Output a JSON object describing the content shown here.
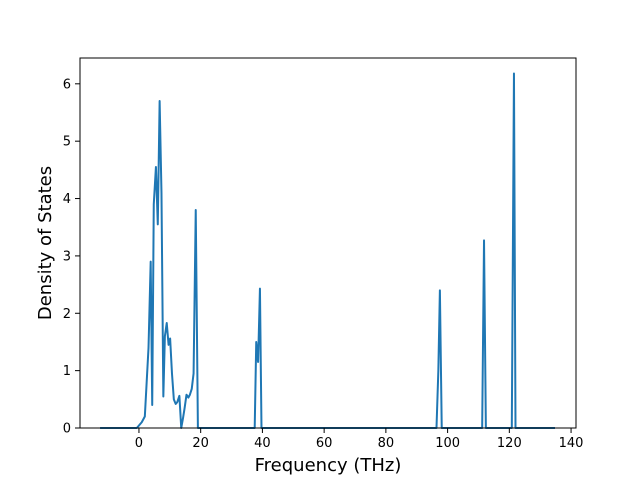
{
  "chart_data": {
    "type": "line",
    "xlabel": "Frequency (THz)",
    "ylabel": "Density of States",
    "xlim": [
      -19.1,
      141.6
    ],
    "ylim": [
      0,
      6.45
    ],
    "xticks": [
      0,
      20,
      40,
      60,
      80,
      100,
      120,
      140
    ],
    "yticks": [
      0,
      1,
      2,
      3,
      4,
      5,
      6
    ],
    "xtick_labels": [
      "0",
      "20",
      "40",
      "60",
      "80",
      "100",
      "120",
      "140"
    ],
    "ytick_labels": [
      "0",
      "1",
      "2",
      "3",
      "4",
      "5",
      "6"
    ],
    "grid": false,
    "line_color": "#1f77b4",
    "series": [
      {
        "x": [
          -12.6,
          -0.7,
          0.9,
          1.9,
          3.1,
          3.8,
          4.3,
          4.8,
          5.5,
          6.1,
          6.7,
          7.3,
          7.9,
          8.4,
          9.0,
          9.6,
          10.1,
          10.7,
          11.3,
          11.9,
          12.4,
          13.1,
          13.7,
          14.3,
          14.8,
          15.4,
          16.0,
          16.5,
          17.1,
          17.7,
          18.4,
          19.1,
          19.7,
          20.3,
          20.9,
          21.6,
          22.1,
          22.6,
          37.5,
          38.0,
          38.6,
          39.2,
          39.7,
          40.4,
          96.4,
          97.0,
          97.5,
          98.1,
          111.2,
          111.8,
          112.4,
          113.1,
          120.8,
          121.5,
          122.0,
          122.6,
          134.8
        ],
        "y": [
          0,
          0,
          0.1,
          0.2,
          1.4,
          2.9,
          0.4,
          3.9,
          4.55,
          3.55,
          5.7,
          4.1,
          0.55,
          1.6,
          1.83,
          1.45,
          1.56,
          0.95,
          0.5,
          0.42,
          0.45,
          0.56,
          0.0,
          0.18,
          0.35,
          0.58,
          0.53,
          0.58,
          0.68,
          0.95,
          3.8,
          0.0,
          0,
          0,
          0,
          0,
          0,
          0,
          0,
          1.5,
          1.15,
          2.43,
          0,
          0,
          0,
          1.0,
          2.4,
          0,
          0,
          3.27,
          0,
          0,
          0,
          6.18,
          0,
          0,
          0
        ]
      }
    ]
  }
}
